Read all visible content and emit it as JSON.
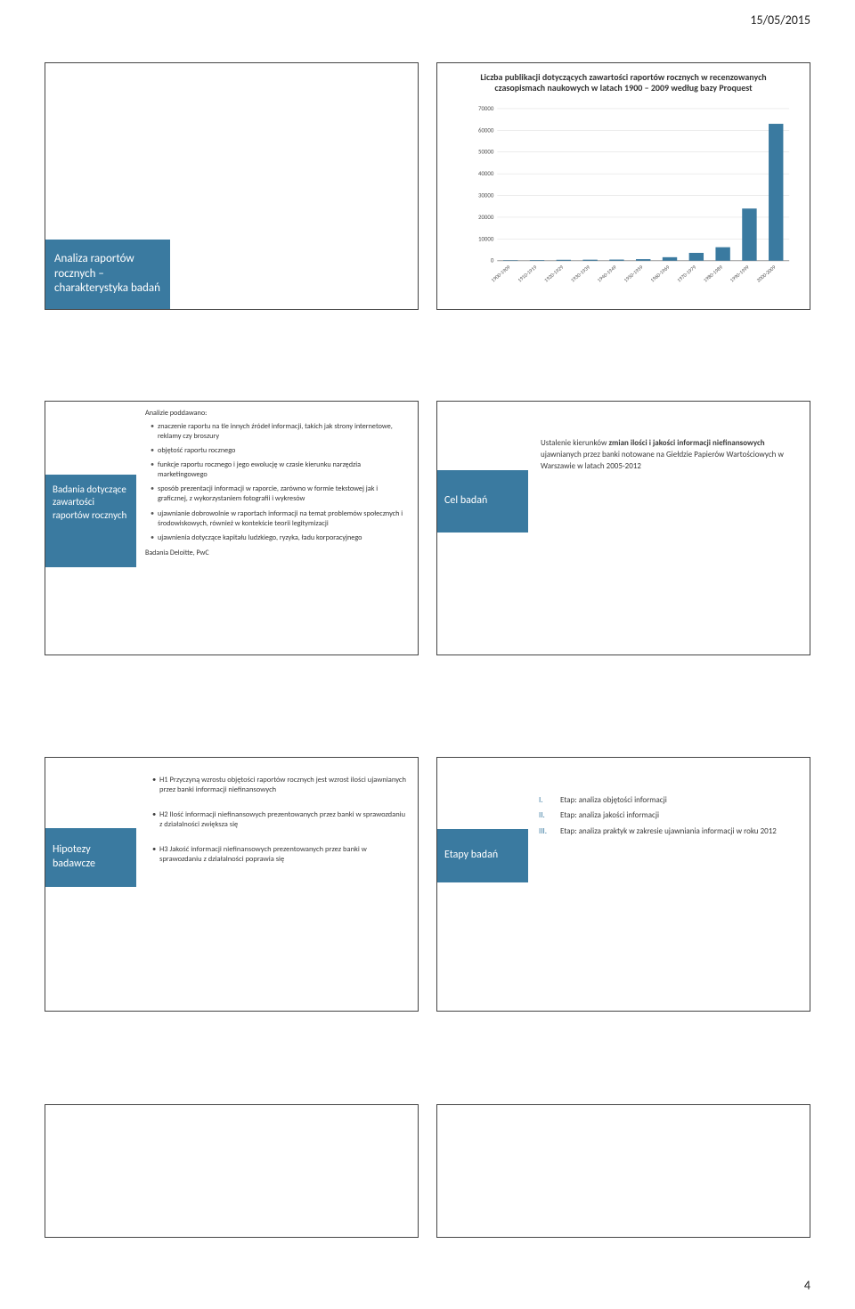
{
  "header": {
    "date": "15/05/2015",
    "page_number": "4"
  },
  "slide1": {
    "sidebar_label": "Analiza raportów rocznych – charakterystyka badań"
  },
  "chart": {
    "type": "bar",
    "title": "Liczba publikacji dotyczących zawartości raportów rocznych w recenzowanych czasopismach naukowych w latach 1900 – 2009 według bazy Proquest",
    "categories": [
      "1900-1909",
      "1910-1919",
      "1920-1929",
      "1930-1939",
      "1940-1949",
      "1950-1959",
      "1960-1969",
      "1970-1979",
      "1980-1989",
      "1990-1999",
      "2000-2009"
    ],
    "values": [
      200,
      250,
      400,
      450,
      500,
      700,
      1600,
      3600,
      6200,
      24000,
      63000
    ],
    "bar_color": "#3a7aa0",
    "ylim": [
      0,
      70000
    ],
    "ytick_step": 10000,
    "yticks_labels": [
      "0",
      "10000",
      "20000",
      "30000",
      "40000",
      "50000",
      "60000",
      "70000"
    ],
    "background_color": "#ffffff",
    "grid_color": "#d9d9d9",
    "axis_color": "#999999",
    "label_fontsize": 7,
    "title_fontsize": 10,
    "bar_width": 0.55
  },
  "slide3": {
    "sidebar_label": "Badania dotyczące zawartości raportów rocznych",
    "lead": "Analizie poddawano:",
    "bullets": [
      "znaczenie raportu na tle innych źródeł informacji, takich jak strony internetowe, reklamy czy broszury",
      "objętość raportu rocznego",
      "funkcje raportu rocznego i jego ewolucję w czasie kierunku narzędzia marketingowego",
      "sposób prezentacji informacji w raporcie, zarówno w formie tekstowej jak i graficznej, z wykorzystaniem fotografii i wykresów",
      "ujawnianie dobrowolnie w raportach informacji na temat problemów społecznych i środowiskowych, również w kontekście teorii legitymizacji",
      "ujawnienia dotyczące kapitału ludzkiego, ryzyka, ładu korporacyjnego"
    ],
    "source": "Badania Deloitte, PwC"
  },
  "slide4": {
    "sidebar_label": "Cel badań",
    "text_pre": "Ustalenie kierunków ",
    "text_bold": "zmian ilości i jakości informacji niefinansowych",
    "text_post": " ujawnianych przez banki notowane na Giełdzie Papierów Wartościowych w Warszawie w latach 2005-2012"
  },
  "slide5": {
    "sidebar_label": "Hipotezy badawcze",
    "bullets": [
      "H1 Przyczyną wzrostu objętości raportów rocznych jest wzrost ilości ujawnianych przez banki informacji niefinansowych",
      "H2 Ilość informacji niefinansowych prezentowanych przez banki w sprawozdaniu z działalności zwiększa się",
      "H3 Jakość informacji niefinansowych prezentowanych przez banki w sprawozdaniu z działalności poprawia się"
    ]
  },
  "slide6": {
    "sidebar_label": "Etapy badań",
    "items": [
      {
        "roman": "I.",
        "text": "Etap: analiza objętości informacji"
      },
      {
        "roman": "II.",
        "text": "Etap: analiza jakości informacji"
      },
      {
        "roman": "III.",
        "text": "Etap: analiza praktyk w zakresie ujawniania informacji w roku 2012"
      }
    ]
  },
  "colors": {
    "brand_blue": "#3a7aa0",
    "text": "#333333",
    "border": "#444444"
  }
}
